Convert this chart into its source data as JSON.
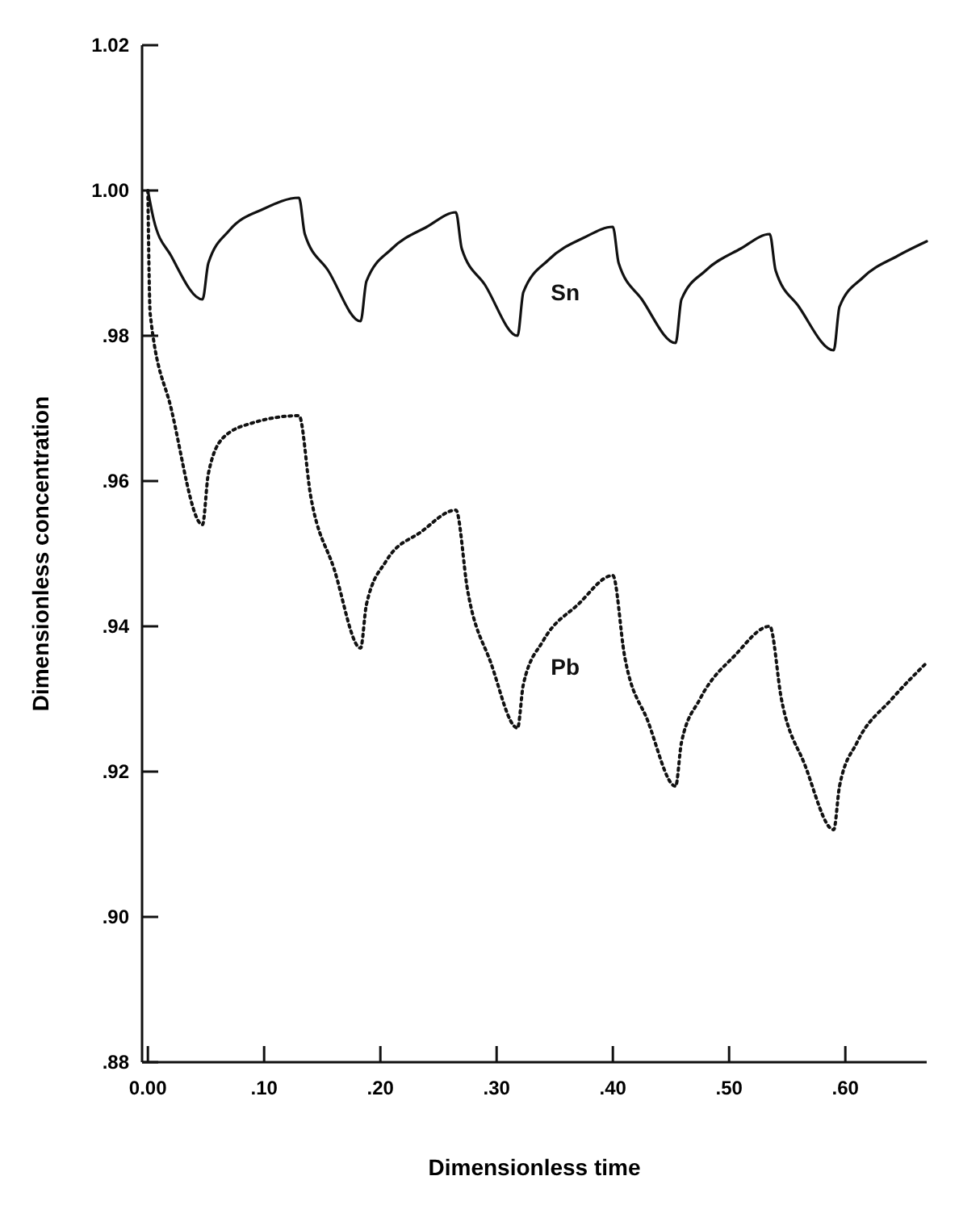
{
  "chart_data": {
    "type": "line",
    "xlabel": "Dimensionless time",
    "ylabel": "Dimensionless concentration",
    "xlim": [
      -0.005,
      0.67
    ],
    "ylim": [
      0.88,
      1.02
    ],
    "xticks": [
      {
        "value": 0,
        "label": "0.00"
      },
      {
        "value": 0.1,
        "label": ".10"
      },
      {
        "value": 0.2,
        "label": ".20"
      },
      {
        "value": 0.3,
        "label": ".30"
      },
      {
        "value": 0.4,
        "label": ".40"
      },
      {
        "value": 0.5,
        "label": ".50"
      },
      {
        "value": 0.6,
        "label": ".60"
      }
    ],
    "yticks": [
      {
        "value": 0.88,
        "label": ".88"
      },
      {
        "value": 0.9,
        "label": ".90"
      },
      {
        "value": 0.92,
        "label": ".92"
      },
      {
        "value": 0.94,
        "label": ".94"
      },
      {
        "value": 0.96,
        "label": ".96"
      },
      {
        "value": 0.98,
        "label": ".98"
      },
      {
        "value": 1.0,
        "label": "1.00"
      },
      {
        "value": 1.02,
        "label": "1.02"
      }
    ],
    "grid": false,
    "marker": "none",
    "series": [
      {
        "name": "Sn",
        "color": "#111111",
        "line_style": "solid",
        "x": [
          0,
          0.005,
          0.02,
          0.047,
          0.052,
          0.07,
          0.1,
          0.13,
          0.135,
          0.155,
          0.183,
          0.188,
          0.21,
          0.24,
          0.265,
          0.27,
          0.29,
          0.318,
          0.323,
          0.345,
          0.375,
          0.4,
          0.405,
          0.425,
          0.454,
          0.459,
          0.48,
          0.51,
          0.535,
          0.54,
          0.56,
          0.59,
          0.595,
          0.615,
          0.645,
          0.67
        ],
        "values": [
          1.0,
          0.996,
          0.991,
          0.985,
          0.99,
          0.9945,
          0.9975,
          0.999,
          0.994,
          0.989,
          0.982,
          0.9875,
          0.992,
          0.995,
          0.997,
          0.992,
          0.987,
          0.98,
          0.986,
          0.9905,
          0.9935,
          0.995,
          0.99,
          0.985,
          0.979,
          0.985,
          0.989,
          0.992,
          0.994,
          0.989,
          0.984,
          0.978,
          0.984,
          0.988,
          0.991,
          0.993
        ]
      },
      {
        "name": "Pb",
        "color": "#111111",
        "line_style": "dotted",
        "x": [
          0,
          0.002,
          0.02,
          0.047,
          0.052,
          0.065,
          0.09,
          0.13,
          0.14,
          0.16,
          0.183,
          0.188,
          0.205,
          0.235,
          0.265,
          0.275,
          0.295,
          0.318,
          0.323,
          0.34,
          0.37,
          0.4,
          0.41,
          0.43,
          0.454,
          0.459,
          0.475,
          0.505,
          0.535,
          0.545,
          0.565,
          0.59,
          0.595,
          0.61,
          0.64,
          0.67
        ],
        "values": [
          1.0,
          0.983,
          0.97,
          0.954,
          0.961,
          0.966,
          0.968,
          0.969,
          0.958,
          0.948,
          0.937,
          0.943,
          0.949,
          0.953,
          0.956,
          0.945,
          0.935,
          0.926,
          0.932,
          0.938,
          0.943,
          0.947,
          0.936,
          0.927,
          0.918,
          0.924,
          0.93,
          0.936,
          0.94,
          0.93,
          0.921,
          0.912,
          0.918,
          0.924,
          0.93,
          0.935
        ]
      }
    ]
  }
}
